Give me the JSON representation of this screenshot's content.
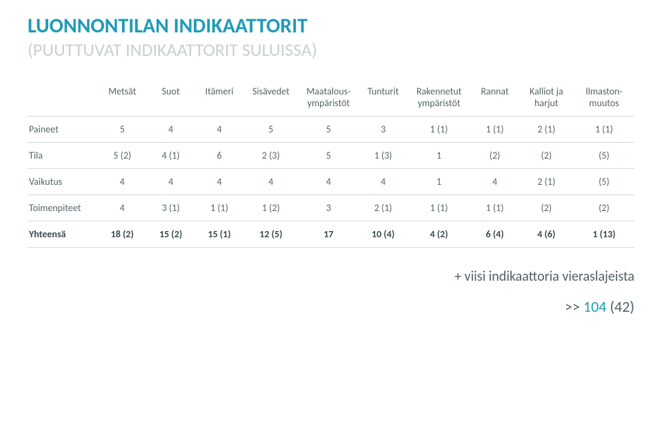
{
  "title": "LUONNONTILAN INDIKAATTORIT",
  "subtitle": "(PUUTTUVAT INDIKAATTORIT SULUISSA)",
  "columns": [
    "",
    "Metsät",
    "Suot",
    "Itämeri",
    "Sisävedet",
    "Maatalous-\nympäristöt",
    "Tunturit",
    "Rakennetut\nympäristöt",
    "Rannat",
    "Kalliot ja\nharjut",
    "Ilmaston-\nmuutos"
  ],
  "rows": [
    {
      "label": "Paineet",
      "cells": [
        "5",
        "4",
        "4",
        "5",
        "5",
        "3",
        "1 (1)",
        "1 (1)",
        "2 (1)",
        "1 (1)"
      ]
    },
    {
      "label": "Tila",
      "cells": [
        "5 (2)",
        "4 (1)",
        "6",
        "2 (3)",
        "5",
        "1 (3)",
        "1",
        "(2)",
        "(2)",
        "(5)"
      ]
    },
    {
      "label": "Vaikutus",
      "cells": [
        "4",
        "4",
        "4",
        "4",
        "4",
        "4",
        "1",
        "4",
        "2 (1)",
        "(5)"
      ]
    },
    {
      "label": "Toimenpiteet",
      "cells": [
        "4",
        "3 (1)",
        "1 (1)",
        "1 (2)",
        "3",
        "2 (1)",
        "1 (1)",
        "1 (1)",
        "(2)",
        "(2)"
      ]
    }
  ],
  "totals": {
    "label": "Yhteensä",
    "cells": [
      "18 (2)",
      "15 (2)",
      "15 (1)",
      "12 (5)",
      "17",
      "10 (4)",
      "4 (2)",
      "6 (4)",
      "4 (6)",
      "1 (13)"
    ]
  },
  "footer": {
    "line1": "+ viisi indikaattoria vieraslajeista",
    "line2_prefix": ">> ",
    "line2_accent": "104",
    "line2_suffix": " (42)"
  },
  "style": {
    "accent_color": "#1f9bb6",
    "subtitle_color": "#c8d0d3",
    "border_color": "#d3dadd",
    "text_color": "#566",
    "col_widths_pct": [
      11.6,
      8,
      8,
      8,
      9,
      10,
      8,
      10.4,
      8,
      9,
      10
    ]
  }
}
